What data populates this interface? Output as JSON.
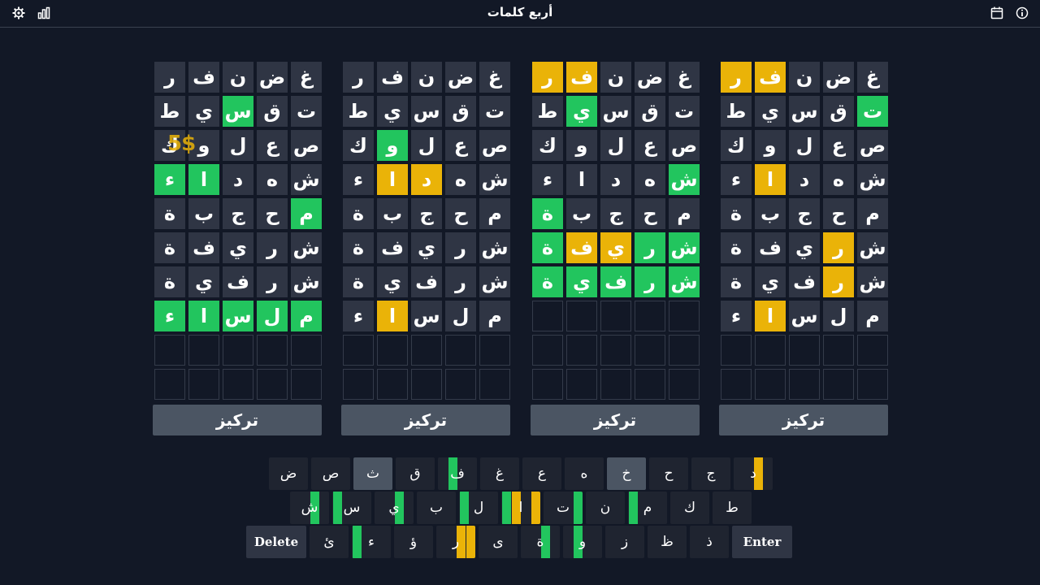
{
  "header": {
    "title": "أربع كلمات"
  },
  "icons": [
    "settings-icon",
    "stats-icon",
    "calendar-icon",
    "info-icon"
  ],
  "colors": {
    "green": "#22c55e",
    "yellow": "#eab308",
    "tile": "#2f3544",
    "bg": "#121826"
  },
  "overlay_text": "5$",
  "focus_label": "تركيز",
  "boards": [
    {
      "name": "board-1",
      "rows": [
        [
          [
            "غ",
            "n"
          ],
          [
            "ض",
            "n"
          ],
          [
            "ن",
            "n"
          ],
          [
            "ف",
            "y"
          ],
          [
            "ر",
            "y"
          ]
        ],
        [
          [
            "ت",
            "g"
          ],
          [
            "ق",
            "n"
          ],
          [
            "س",
            "n"
          ],
          [
            "ي",
            "n"
          ],
          [
            "ط",
            "n"
          ]
        ],
        [
          [
            "ص",
            "n"
          ],
          [
            "ع",
            "n"
          ],
          [
            "ل",
            "n"
          ],
          [
            "و",
            "n"
          ],
          [
            "ك",
            "n"
          ]
        ],
        [
          [
            "ش",
            "n"
          ],
          [
            "ه",
            "n"
          ],
          [
            "د",
            "n"
          ],
          [
            "ا",
            "y"
          ],
          [
            "ء",
            "n"
          ]
        ],
        [
          [
            "م",
            "n"
          ],
          [
            "ح",
            "n"
          ],
          [
            "ج",
            "n"
          ],
          [
            "ب",
            "n"
          ],
          [
            "ة",
            "n"
          ]
        ],
        [
          [
            "ش",
            "n"
          ],
          [
            "ر",
            "y"
          ],
          [
            "ي",
            "n"
          ],
          [
            "ف",
            "n"
          ],
          [
            "ة",
            "n"
          ]
        ],
        [
          [
            "ش",
            "n"
          ],
          [
            "ر",
            "y"
          ],
          [
            "ف",
            "n"
          ],
          [
            "ي",
            "n"
          ],
          [
            "ة",
            "n"
          ]
        ],
        [
          [
            "م",
            "n"
          ],
          [
            "ل",
            "n"
          ],
          [
            "س",
            "n"
          ],
          [
            "ا",
            "y"
          ],
          [
            "ء",
            "n"
          ]
        ]
      ]
    },
    {
      "name": "board-2",
      "rows": [
        [
          [
            "غ",
            "n"
          ],
          [
            "ض",
            "n"
          ],
          [
            "ن",
            "n"
          ],
          [
            "ف",
            "y"
          ],
          [
            "ر",
            "y"
          ]
        ],
        [
          [
            "ت",
            "n"
          ],
          [
            "ق",
            "n"
          ],
          [
            "س",
            "n"
          ],
          [
            "ي",
            "g"
          ],
          [
            "ط",
            "n"
          ]
        ],
        [
          [
            "ص",
            "n"
          ],
          [
            "ع",
            "n"
          ],
          [
            "ل",
            "n"
          ],
          [
            "و",
            "n"
          ],
          [
            "ك",
            "n"
          ]
        ],
        [
          [
            "ش",
            "g"
          ],
          [
            "ه",
            "n"
          ],
          [
            "د",
            "n"
          ],
          [
            "ا",
            "n"
          ],
          [
            "ء",
            "n"
          ]
        ],
        [
          [
            "م",
            "n"
          ],
          [
            "ح",
            "n"
          ],
          [
            "ج",
            "n"
          ],
          [
            "ب",
            "n"
          ],
          [
            "ة",
            "g"
          ]
        ],
        [
          [
            "ش",
            "g"
          ],
          [
            "ر",
            "g"
          ],
          [
            "ي",
            "y"
          ],
          [
            "ف",
            "y"
          ],
          [
            "ة",
            "g"
          ]
        ],
        [
          [
            "ش",
            "g"
          ],
          [
            "ر",
            "g"
          ],
          [
            "ف",
            "g"
          ],
          [
            "ي",
            "g"
          ],
          [
            "ة",
            "g"
          ]
        ]
      ]
    },
    {
      "name": "board-3",
      "rows": [
        [
          [
            "غ",
            "n"
          ],
          [
            "ض",
            "n"
          ],
          [
            "ن",
            "n"
          ],
          [
            "ف",
            "n"
          ],
          [
            "ر",
            "n"
          ]
        ],
        [
          [
            "ت",
            "n"
          ],
          [
            "ق",
            "n"
          ],
          [
            "س",
            "n"
          ],
          [
            "ي",
            "n"
          ],
          [
            "ط",
            "n"
          ]
        ],
        [
          [
            "ص",
            "n"
          ],
          [
            "ع",
            "n"
          ],
          [
            "ل",
            "n"
          ],
          [
            "و",
            "g"
          ],
          [
            "ك",
            "n"
          ]
        ],
        [
          [
            "ش",
            "n"
          ],
          [
            "ه",
            "n"
          ],
          [
            "د",
            "y"
          ],
          [
            "ا",
            "y"
          ],
          [
            "ء",
            "n"
          ]
        ],
        [
          [
            "م",
            "n"
          ],
          [
            "ح",
            "n"
          ],
          [
            "ج",
            "n"
          ],
          [
            "ب",
            "n"
          ],
          [
            "ة",
            "n"
          ]
        ],
        [
          [
            "ش",
            "n"
          ],
          [
            "ر",
            "n"
          ],
          [
            "ي",
            "n"
          ],
          [
            "ف",
            "n"
          ],
          [
            "ة",
            "n"
          ]
        ],
        [
          [
            "ش",
            "n"
          ],
          [
            "ر",
            "n"
          ],
          [
            "ف",
            "n"
          ],
          [
            "ي",
            "n"
          ],
          [
            "ة",
            "n"
          ]
        ],
        [
          [
            "م",
            "n"
          ],
          [
            "ل",
            "n"
          ],
          [
            "س",
            "n"
          ],
          [
            "ا",
            "y"
          ],
          [
            "ء",
            "n"
          ]
        ]
      ]
    },
    {
      "name": "board-4",
      "rows": [
        [
          [
            "غ",
            "n"
          ],
          [
            "ض",
            "n"
          ],
          [
            "ن",
            "n"
          ],
          [
            "ف",
            "n"
          ],
          [
            "ر",
            "n"
          ]
        ],
        [
          [
            "ت",
            "n"
          ],
          [
            "ق",
            "n"
          ],
          [
            "س",
            "g"
          ],
          [
            "ي",
            "n"
          ],
          [
            "ط",
            "n"
          ]
        ],
        [
          [
            "ص",
            "n"
          ],
          [
            "ع",
            "n"
          ],
          [
            "ل",
            "n"
          ],
          [
            "و",
            "n"
          ],
          [
            "ك",
            "n"
          ]
        ],
        [
          [
            "ش",
            "n"
          ],
          [
            "ه",
            "n"
          ],
          [
            "د",
            "n"
          ],
          [
            "ا",
            "g"
          ],
          [
            "ء",
            "g"
          ]
        ],
        [
          [
            "م",
            "g"
          ],
          [
            "ح",
            "n"
          ],
          [
            "ج",
            "n"
          ],
          [
            "ب",
            "n"
          ],
          [
            "ة",
            "n"
          ]
        ],
        [
          [
            "ش",
            "n"
          ],
          [
            "ر",
            "n"
          ],
          [
            "ي",
            "n"
          ],
          [
            "ف",
            "n"
          ],
          [
            "ة",
            "n"
          ]
        ],
        [
          [
            "ش",
            "n"
          ],
          [
            "ر",
            "n"
          ],
          [
            "ف",
            "n"
          ],
          [
            "ي",
            "n"
          ],
          [
            "ة",
            "n"
          ]
        ],
        [
          [
            "م",
            "g"
          ],
          [
            "ل",
            "g"
          ],
          [
            "س",
            "g"
          ],
          [
            "ا",
            "g"
          ],
          [
            "ء",
            "g"
          ]
        ]
      ]
    }
  ],
  "keyboard": [
    [
      {
        "k": "د",
        "used": false,
        "q": [
          "n",
          "y",
          "n",
          "n"
        ]
      },
      {
        "k": "ج",
        "used": false,
        "q": [
          "n",
          "n",
          "n",
          "n"
        ]
      },
      {
        "k": "ح",
        "used": false,
        "q": [
          "n",
          "n",
          "n",
          "n"
        ]
      },
      {
        "k": "خ",
        "used": true,
        "q": [
          "n",
          "n",
          "n",
          "n"
        ]
      },
      {
        "k": "ه",
        "used": false,
        "q": [
          "n",
          "n",
          "n",
          "n"
        ]
      },
      {
        "k": "ع",
        "used": false,
        "q": [
          "n",
          "n",
          "n",
          "n"
        ]
      },
      {
        "k": "غ",
        "used": false,
        "q": [
          "n",
          "n",
          "n",
          "n"
        ]
      },
      {
        "k": "ف",
        "used": false,
        "q": [
          "n",
          "n",
          "g",
          "n"
        ]
      },
      {
        "k": "ق",
        "used": false,
        "q": [
          "n",
          "n",
          "n",
          "n"
        ]
      },
      {
        "k": "ث",
        "used": true,
        "q": [
          "n",
          "n",
          "n",
          "n"
        ]
      },
      {
        "k": "ص",
        "used": false,
        "q": [
          "n",
          "n",
          "n",
          "n"
        ]
      },
      {
        "k": "ض",
        "used": false,
        "q": [
          "n",
          "n",
          "n",
          "n"
        ]
      }
    ],
    [
      {
        "k": "ط",
        "used": false,
        "q": [
          "n",
          "n",
          "n",
          "n"
        ]
      },
      {
        "k": "ك",
        "used": false,
        "q": [
          "n",
          "n",
          "n",
          "n"
        ]
      },
      {
        "k": "م",
        "used": false,
        "q": [
          "n",
          "n",
          "n",
          "g"
        ]
      },
      {
        "k": "ن",
        "used": false,
        "q": [
          "n",
          "n",
          "n",
          "n"
        ]
      },
      {
        "k": "ت",
        "used": false,
        "q": [
          "g",
          "n",
          "n",
          "n"
        ]
      },
      {
        "k": "ا",
        "used": false,
        "q": [
          "y",
          "n",
          "y",
          "g"
        ]
      },
      {
        "k": "ل",
        "used": false,
        "q": [
          "n",
          "n",
          "n",
          "g"
        ]
      },
      {
        "k": "ب",
        "used": false,
        "q": [
          "n",
          "n",
          "n",
          "n"
        ]
      },
      {
        "k": "ي",
        "used": false,
        "q": [
          "n",
          "g",
          "n",
          "n"
        ]
      },
      {
        "k": "س",
        "used": false,
        "q": [
          "n",
          "n",
          "n",
          "g"
        ]
      },
      {
        "k": "ش",
        "used": false,
        "q": [
          "n",
          "g",
          "n",
          "n"
        ]
      }
    ],
    [
      {
        "k": "Enter",
        "wide": true
      },
      {
        "k": "ذ",
        "used": false,
        "q": [
          "n",
          "n",
          "n",
          "n"
        ]
      },
      {
        "k": "ظ",
        "used": false,
        "q": [
          "n",
          "n",
          "n",
          "n"
        ]
      },
      {
        "k": "ز",
        "used": false,
        "q": [
          "n",
          "n",
          "n",
          "n"
        ]
      },
      {
        "k": "و",
        "used": false,
        "q": [
          "n",
          "n",
          "g",
          "n"
        ]
      },
      {
        "k": "ة",
        "used": false,
        "q": [
          "n",
          "g",
          "n",
          "n"
        ]
      },
      {
        "k": "ى",
        "used": false,
        "q": [
          "n",
          "n",
          "n",
          "n"
        ]
      },
      {
        "k": "ر",
        "used": false,
        "q": [
          "y",
          "y",
          "n",
          "n"
        ]
      },
      {
        "k": "ؤ",
        "used": false,
        "q": [
          "n",
          "n",
          "n",
          "n"
        ]
      },
      {
        "k": "ء",
        "used": false,
        "q": [
          "n",
          "n",
          "n",
          "g"
        ]
      },
      {
        "k": "ئ",
        "used": false,
        "q": [
          "n",
          "n",
          "n",
          "n"
        ]
      },
      {
        "k": "Delete",
        "wide": true
      }
    ]
  ]
}
